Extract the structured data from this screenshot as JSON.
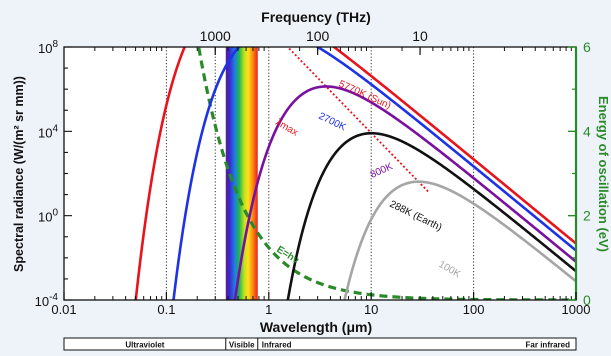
{
  "chart_data": {
    "type": "line",
    "title": "",
    "xlabel_bottom": "Wavelength (μm)",
    "xlabel_top": "Frequency (THz)",
    "ylabel_left": "Spectral radiance (W/(m² sr mm))",
    "ylabel_right": "Energy of oscillation (eV)",
    "x_scale": "log",
    "y_scale": "log",
    "xlim": [
      0.01,
      1000
    ],
    "ylim": [
      0.0001,
      100000000
    ],
    "y2lim": [
      0,
      6
    ],
    "x_ticks": [
      {
        "value": 0.01,
        "label": "0.01"
      },
      {
        "value": 0.1,
        "label": "0.1"
      },
      {
        "value": 1,
        "label": "1"
      },
      {
        "value": 10,
        "label": "10"
      },
      {
        "value": 100,
        "label": "100"
      },
      {
        "value": 1000,
        "label": "1000"
      }
    ],
    "top_ticks": [
      {
        "wavelength": 0.3,
        "label": "1000"
      },
      {
        "wavelength": 3,
        "label": "100"
      },
      {
        "wavelength": 30,
        "label": "10"
      }
    ],
    "y_ticks": [
      {
        "value": 0.0001,
        "label": "10",
        "exp": "-4"
      },
      {
        "value": 1,
        "label": "10",
        "exp": "0"
      },
      {
        "value": 10000,
        "label": "10",
        "exp": "4"
      },
      {
        "value": 100000000,
        "label": "10",
        "exp": "8"
      }
    ],
    "y2_ticks": [
      {
        "value": 0,
        "label": "0"
      },
      {
        "value": 2,
        "label": "2"
      },
      {
        "value": 4,
        "label": "4"
      },
      {
        "value": 6,
        "label": "6"
      }
    ],
    "dotted_guides_wavelength": [
      0.1,
      0.3,
      1,
      10,
      100
    ],
    "visible_band": [
      0.38,
      0.78
    ],
    "series": [
      {
        "name": "5770K (Sun)",
        "temperature": 5770,
        "color": "#e8141b"
      },
      {
        "name": "2700K",
        "temperature": 2700,
        "color": "#1e32e6"
      },
      {
        "name": "800K",
        "temperature": 800,
        "color": "#7a10a0"
      },
      {
        "name": "288K (Earth)",
        "temperature": 288,
        "color": "#111111"
      },
      {
        "name": "100K",
        "temperature": 100,
        "color": "#a5a5a5"
      }
    ],
    "wien_line": {
      "label": "λmax",
      "color": "#e8141b"
    },
    "energy_line": {
      "label": "E=hν",
      "color": "#2a8a2a"
    },
    "regions": [
      {
        "label": "Ultraviolet",
        "from": 0.01,
        "to": 0.38
      },
      {
        "label": "Visible",
        "from": 0.38,
        "to": 0.78
      },
      {
        "label": "Infrared",
        "from": 0.78,
        "to": 1000
      }
    ],
    "region_far_label": "Far infrared"
  },
  "colors": {
    "axis": "#111111",
    "right_axis": "#2a8a2a",
    "background": "#eef3f9",
    "plot_background": "#ffffff"
  }
}
